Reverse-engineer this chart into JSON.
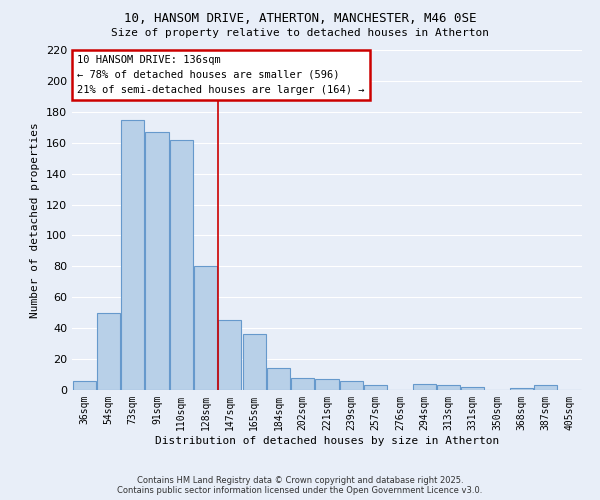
{
  "title_line1": "10, HANSOM DRIVE, ATHERTON, MANCHESTER, M46 0SE",
  "title_line2": "Size of property relative to detached houses in Atherton",
  "xlabel": "Distribution of detached houses by size in Atherton",
  "ylabel": "Number of detached properties",
  "categories": [
    "36sqm",
    "54sqm",
    "73sqm",
    "91sqm",
    "110sqm",
    "128sqm",
    "147sqm",
    "165sqm",
    "184sqm",
    "202sqm",
    "221sqm",
    "239sqm",
    "257sqm",
    "276sqm",
    "294sqm",
    "313sqm",
    "331sqm",
    "350sqm",
    "368sqm",
    "387sqm",
    "405sqm"
  ],
  "values": [
    6,
    50,
    175,
    167,
    162,
    80,
    45,
    36,
    14,
    8,
    7,
    6,
    3,
    0,
    4,
    3,
    2,
    0,
    1,
    3,
    0
  ],
  "bar_color": "#b8d0e8",
  "bar_edge_color": "#6699cc",
  "annotation_text": "10 HANSOM DRIVE: 136sqm\n← 78% of detached houses are smaller (596)\n21% of semi-detached houses are larger (164) →",
  "annotation_box_color": "#ffffff",
  "annotation_box_edge_color": "#cc0000",
  "vline_x_index": 5.5,
  "ylim": [
    0,
    220
  ],
  "yticks": [
    0,
    20,
    40,
    60,
    80,
    100,
    120,
    140,
    160,
    180,
    200,
    220
  ],
  "bg_color": "#e8eef8",
  "grid_color": "#ffffff",
  "footer_line1": "Contains HM Land Registry data © Crown copyright and database right 2025.",
  "footer_line2": "Contains public sector information licensed under the Open Government Licence v3.0."
}
